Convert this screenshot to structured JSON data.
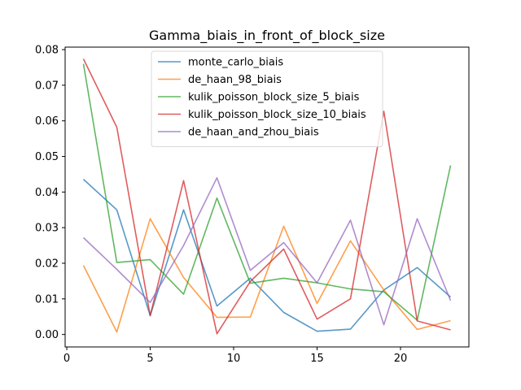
{
  "chart_data": {
    "type": "line",
    "title": "Gamma_biais_in_front_of_block_size",
    "xlabel": "",
    "ylabel": "",
    "xlim": [
      -0.1,
      24.1
    ],
    "ylim": [
      -0.0035,
      0.0807
    ],
    "x_ticks": [
      0,
      5,
      10,
      15,
      20
    ],
    "y_ticks": [
      0.0,
      0.01,
      0.02,
      0.03,
      0.04,
      0.05,
      0.06,
      0.07,
      0.08
    ],
    "x_tick_labels": [
      "0",
      "5",
      "10",
      "15",
      "20"
    ],
    "y_tick_labels": [
      "0.00",
      "0.01",
      "0.02",
      "0.03",
      "0.04",
      "0.05",
      "0.06",
      "0.07",
      "0.08"
    ],
    "grid": false,
    "legend_position": "top-center",
    "x": [
      1,
      3,
      5,
      7,
      9,
      11,
      13,
      15,
      17,
      19,
      21,
      23
    ],
    "series": [
      {
        "name": "monte_carlo_biais",
        "color": "#1f77b4",
        "values": [
          0.0436,
          0.035,
          0.0053,
          0.035,
          0.008,
          0.0158,
          0.0062,
          0.0009,
          0.0015,
          0.0125,
          0.0188,
          0.0105
        ]
      },
      {
        "name": "de_haan_98_biais",
        "color": "#ff7f0e",
        "values": [
          0.0194,
          0.0007,
          0.0325,
          0.016,
          0.0048,
          0.0049,
          0.0304,
          0.0087,
          0.0263,
          0.0125,
          0.0014,
          0.0039
        ]
      },
      {
        "name": "kulik_poisson_block_size_5_biais",
        "color": "#2ca02c",
        "values": [
          0.076,
          0.0202,
          0.021,
          0.0113,
          0.0383,
          0.0144,
          0.0158,
          0.0145,
          0.0128,
          0.012,
          0.004,
          0.0475
        ]
      },
      {
        "name": "kulik_poisson_block_size_10_biais",
        "color": "#d62728",
        "values": [
          0.0774,
          0.0582,
          0.0053,
          0.0432,
          0.0002,
          0.0149,
          0.024,
          0.0043,
          0.01,
          0.0627,
          0.0038,
          0.0013
        ]
      },
      {
        "name": "de_haan_and_zhou_biais",
        "color": "#9467bd",
        "values": [
          0.0272,
          0.0183,
          0.009,
          0.025,
          0.044,
          0.018,
          0.0258,
          0.0145,
          0.0321,
          0.0027,
          0.0325,
          0.0095
        ]
      }
    ]
  }
}
